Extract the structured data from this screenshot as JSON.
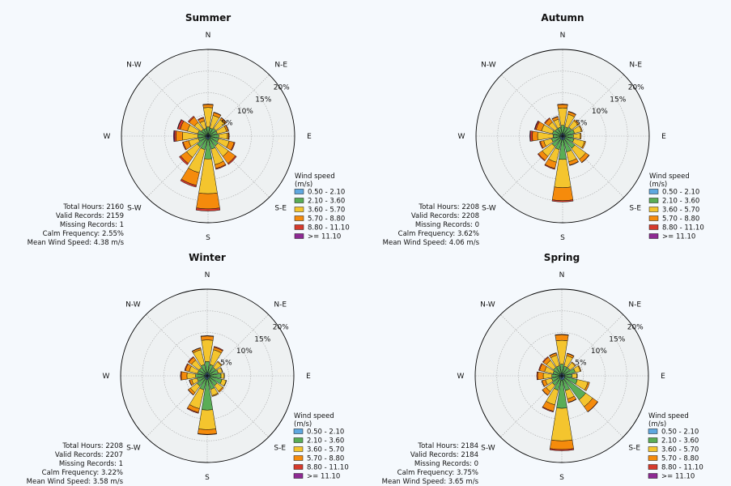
{
  "colors": {
    "page_background": "#f5f9fd",
    "axes_background": "#eef1f2",
    "grid": "#a8a8a8",
    "bar_edge": "#111111"
  },
  "chart_data": [
    {
      "type": "windrose",
      "title": "Summer",
      "directions": [
        "N",
        "N-E",
        "E",
        "S-E",
        "S",
        "S-W",
        "W",
        "N-W"
      ],
      "radial_ticks": [
        "5%",
        "10%",
        "15%",
        "20%"
      ],
      "radial_max": 20,
      "sector_angles_deg": [
        0,
        22.5,
        45,
        67.5,
        90,
        112.5,
        135,
        157.5,
        180,
        202.5,
        225,
        247.5,
        270,
        292.5,
        315,
        337.5
      ],
      "legend": {
        "title_lines": [
          "Wind speed",
          "(m/s)"
        ],
        "entries": [
          "0.50 - 2.10",
          "2.10 - 3.60",
          "3.60 - 5.70",
          "5.70 - 8.80",
          "8.80 - 11.10",
          ">= 11.10"
        ],
        "colors": [
          "#5fa8e0",
          "#5aad56",
          "#f4c52e",
          "#f58b0c",
          "#d63a2c",
          "#8e2a93"
        ]
      },
      "stats": [
        "Total Hours: 2160",
        "Valid Records: 2159",
        "Missing Records: 1",
        "Calm Frequency: 2.55%",
        "Mean Wind Speed: 4.38 m/s"
      ],
      "series": [
        {
          "name": "0.50 - 2.10",
          "values": [
            0.6,
            0.5,
            0.5,
            0.5,
            0.6,
            0.6,
            0.6,
            0.7,
            0.8,
            0.7,
            0.7,
            0.6,
            0.6,
            0.6,
            0.5,
            0.5
          ]
        },
        {
          "name": "2.10 - 3.60",
          "values": [
            1.5,
            1.4,
            1.7,
            1.7,
            1.9,
            1.9,
            2.2,
            2.4,
            4.5,
            2.5,
            2.4,
            1.7,
            1.8,
            1.8,
            1.4,
            1.3
          ]
        },
        {
          "name": "3.60 - 5.70",
          "values": [
            4.5,
            3.0,
            2.5,
            2.2,
            2.0,
            2.5,
            3.0,
            3.7,
            8.0,
            5.5,
            3.0,
            2.3,
            3.5,
            2.5,
            2.0,
            1.8
          ]
        },
        {
          "name": "5.70 - 8.80",
          "values": [
            0.7,
            0.7,
            0.5,
            0.4,
            0.3,
            1.2,
            2.0,
            0.9,
            3.5,
            3.0,
            1.7,
            1.3,
            1.5,
            1.7,
            1.5,
            0.7
          ]
        },
        {
          "name": "8.80 - 11.10",
          "values": [
            0.1,
            0.1,
            0.1,
            0.1,
            0.1,
            0.2,
            0.3,
            0.2,
            0.5,
            0.4,
            0.4,
            0.2,
            0.4,
            0.6,
            0.3,
            0.2
          ]
        },
        {
          "name": ">= 11.10",
          "values": [
            0,
            0,
            0,
            0,
            0,
            0,
            0,
            0,
            0,
            0,
            0,
            0,
            0.2,
            0.1,
            0,
            0
          ]
        }
      ]
    },
    {
      "type": "windrose",
      "title": "Autumn",
      "directions": [
        "N",
        "N-E",
        "E",
        "S-E",
        "S",
        "S-W",
        "W",
        "N-W"
      ],
      "radial_ticks": [
        "5%",
        "10%",
        "15%",
        "20%"
      ],
      "radial_max": 20,
      "sector_angles_deg": [
        0,
        22.5,
        45,
        67.5,
        90,
        112.5,
        135,
        157.5,
        180,
        202.5,
        225,
        247.5,
        270,
        292.5,
        315,
        337.5
      ],
      "legend": {
        "title_lines": [
          "Wind speed",
          "(m/s)"
        ],
        "entries": [
          "0.50 - 2.10",
          "2.10 - 3.60",
          "3.60 - 5.70",
          "5.70 - 8.80",
          "8.80 - 11.10",
          ">= 11.10"
        ],
        "colors": [
          "#5fa8e0",
          "#5aad56",
          "#f4c52e",
          "#f58b0c",
          "#d63a2c",
          "#8e2a93"
        ]
      },
      "stats": [
        "Total Hours: 2208",
        "Valid Records: 2208",
        "Missing Records: 0",
        "Calm Frequency: 3.62%",
        "Mean Wind Speed: 4.06 m/s"
      ],
      "series": [
        {
          "name": "0.50 - 2.10",
          "values": [
            0.7,
            0.6,
            0.6,
            0.6,
            0.6,
            0.6,
            0.7,
            0.8,
            0.9,
            0.8,
            0.7,
            0.7,
            0.6,
            0.6,
            0.6,
            0.6
          ]
        },
        {
          "name": "2.10 - 3.60",
          "values": [
            1.8,
            1.6,
            1.9,
            2.2,
            1.9,
            2.1,
            2.8,
            3.0,
            4.5,
            2.4,
            2.3,
            1.9,
            1.6,
            1.8,
            1.5,
            1.5
          ]
        },
        {
          "name": "3.60 - 5.70",
          "values": [
            4.0,
            3.0,
            1.9,
            1.7,
            1.6,
            2.5,
            3.1,
            2.3,
            6.5,
            3.0,
            2.8,
            1.9,
            3.6,
            2.6,
            1.9,
            1.9
          ]
        },
        {
          "name": "5.70 - 8.80",
          "values": [
            0.8,
            0.6,
            0.3,
            0.2,
            0.2,
            0.3,
            0.9,
            0.8,
            3.0,
            1.5,
            1.1,
            0.8,
            1.2,
            1.3,
            1.0,
            0.6
          ]
        },
        {
          "name": "8.80 - 11.10",
          "values": [
            0.1,
            0.1,
            0,
            0,
            0,
            0,
            0.1,
            0.1,
            0.3,
            0.2,
            0.2,
            0.2,
            0.5,
            0.3,
            0.2,
            0.1
          ]
        },
        {
          "name": ">= 11.10",
          "values": [
            0,
            0,
            0,
            0,
            0,
            0,
            0,
            0,
            0,
            0,
            0,
            0,
            0.1,
            0.1,
            0,
            0
          ]
        }
      ]
    },
    {
      "type": "windrose",
      "title": "Winter",
      "directions": [
        "N",
        "N-E",
        "E",
        "S-E",
        "S",
        "S-W",
        "W",
        "N-W"
      ],
      "radial_ticks": [
        "5%",
        "10%",
        "15%",
        "20%"
      ],
      "radial_max": 20,
      "sector_angles_deg": [
        0,
        22.5,
        45,
        67.5,
        90,
        112.5,
        135,
        157.5,
        180,
        202.5,
        225,
        247.5,
        270,
        292.5,
        315,
        337.5
      ],
      "legend": {
        "title_lines": [
          "Wind speed",
          "(m/s)"
        ],
        "entries": [
          "0.50 - 2.10",
          "2.10 - 3.60",
          "3.60 - 5.70",
          "5.70 - 8.80",
          "8.80 - 11.10",
          ">= 11.10"
        ],
        "colors": [
          "#5fa8e0",
          "#5aad56",
          "#f4c52e",
          "#f58b0c",
          "#d63a2c",
          "#8e2a93"
        ]
      },
      "stats": [
        "Total Hours: 2208",
        "Valid Records: 2207",
        "Missing Records: 1",
        "Calm Frequency: 3.22%",
        "Mean Wind Speed: 3.58 m/s"
      ],
      "series": [
        {
          "name": "0.50 - 2.10",
          "values": [
            0.8,
            0.7,
            0.6,
            0.6,
            0.7,
            0.7,
            0.6,
            0.7,
            0.9,
            0.8,
            0.7,
            0.6,
            0.7,
            0.6,
            0.6,
            0.7
          ]
        },
        {
          "name": "2.10 - 3.60",
          "values": [
            2.5,
            2.0,
            1.8,
            2.0,
            2.5,
            2.8,
            2.2,
            2.5,
            7.0,
            2.5,
            2.2,
            1.8,
            2.0,
            1.7,
            1.7,
            2.0
          ]
        },
        {
          "name": "3.60 - 5.70",
          "values": [
            5.0,
            3.5,
            1.6,
            1.0,
            0.7,
            1.0,
            1.6,
            1.5,
            4.5,
            4.5,
            1.9,
            1.3,
            2.0,
            2.0,
            2.2,
            3.5
          ]
        },
        {
          "name": "5.70 - 8.80",
          "values": [
            0.9,
            0.6,
            0.2,
            0.1,
            0.1,
            0.1,
            0.3,
            0.2,
            1.1,
            0.9,
            0.6,
            0.5,
            1.3,
            0.9,
            0.8,
            0.4
          ]
        },
        {
          "name": "8.80 - 11.10",
          "values": [
            0.1,
            0.2,
            0,
            0,
            0,
            0,
            0,
            0,
            0.1,
            0.2,
            0.1,
            0.1,
            0.2,
            0.2,
            0.2,
            0.1
          ]
        },
        {
          "name": ">= 11.10",
          "values": [
            0,
            0,
            0,
            0,
            0,
            0,
            0,
            0,
            0,
            0,
            0,
            0,
            0,
            0,
            0,
            0
          ]
        }
      ]
    },
    {
      "type": "windrose",
      "title": "Spring",
      "directions": [
        "N",
        "N-E",
        "E",
        "S-E",
        "S",
        "S-W",
        "W",
        "N-W"
      ],
      "radial_ticks": [
        "5%",
        "10%",
        "15%",
        "20%"
      ],
      "radial_max": 20,
      "sector_angles_deg": [
        0,
        22.5,
        45,
        67.5,
        90,
        112.5,
        135,
        157.5,
        180,
        202.5,
        225,
        247.5,
        270,
        292.5,
        315,
        337.5
      ],
      "legend": {
        "title_lines": [
          "Wind speed",
          "(m/s)"
        ],
        "entries": [
          "0.50 - 2.10",
          "2.10 - 3.60",
          "3.60 - 5.70",
          "5.70 - 8.80",
          "8.80 - 11.10",
          ">= 11.10"
        ],
        "colors": [
          "#5fa8e0",
          "#5aad56",
          "#f4c52e",
          "#f58b0c",
          "#d63a2c",
          "#8e2a93"
        ]
      },
      "stats": [
        "Total Hours: 2184",
        "Valid Records: 2184",
        "Missing Records: 0",
        "Calm Frequency: 3.75%",
        "Mean Wind Speed: 3.65 m/s"
      ],
      "series": [
        {
          "name": "0.50 - 2.10",
          "values": [
            0.7,
            0.6,
            0.6,
            0.7,
            0.6,
            0.7,
            0.8,
            0.9,
            1.0,
            0.8,
            0.7,
            0.6,
            0.6,
            0.6,
            0.6,
            0.6
          ]
        },
        {
          "name": "2.10 - 3.60",
          "values": [
            2.0,
            1.7,
            1.7,
            2.5,
            1.8,
            3.0,
            6.0,
            2.6,
            6.5,
            2.6,
            2.0,
            1.8,
            1.7,
            1.5,
            1.8,
            1.8
          ]
        },
        {
          "name": "3.60 - 5.70",
          "values": [
            5.5,
            2.5,
            1.5,
            1.2,
            1.1,
            2.5,
            2.0,
            2.0,
            7.5,
            3.5,
            1.8,
            1.5,
            2.0,
            2.0,
            2.0,
            2.5
          ]
        },
        {
          "name": "5.70 - 8.80",
          "values": [
            1.3,
            0.5,
            0.2,
            0.2,
            0.1,
            0.4,
            1.4,
            0.8,
            2.0,
            1.5,
            1.0,
            0.8,
            1.3,
            1.2,
            0.9,
            0.5
          ]
        },
        {
          "name": "8.80 - 11.10",
          "values": [
            0.1,
            0.1,
            0,
            0,
            0,
            0,
            0.1,
            0.1,
            0.3,
            0.2,
            0.1,
            0.1,
            0.2,
            0.2,
            0.2,
            0.1
          ]
        },
        {
          "name": ">= 11.10",
          "values": [
            0,
            0,
            0,
            0,
            0,
            0,
            0,
            0,
            0,
            0,
            0,
            0,
            0,
            0,
            0,
            0
          ]
        }
      ]
    }
  ]
}
